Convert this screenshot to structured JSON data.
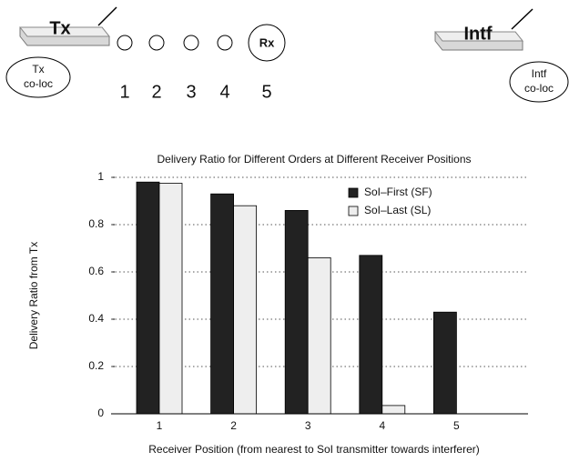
{
  "diagram": {
    "tx": "Tx",
    "tx_coloc": [
      "Tx",
      "co-loc"
    ],
    "rx": "Rx",
    "positions": [
      "1",
      "2",
      "3",
      "4",
      "5"
    ],
    "intf": "Intf",
    "intf_coloc": [
      "Intf",
      "co-loc"
    ]
  },
  "chart_data": {
    "type": "bar",
    "title": "Delivery Ratio for Different Orders at Different Receiver Positions",
    "x_label": "Receiver Position (from nearest to SoI transmitter towards interferer)",
    "y_label": "Delivery Ratio from Tx",
    "categories": [
      "1",
      "2",
      "3",
      "4",
      "5"
    ],
    "series": [
      {
        "name": "SoI–First (SF)",
        "color": "#222222",
        "values": [
          0.98,
          0.93,
          0.86,
          0.67,
          0.43
        ]
      },
      {
        "name": "SoI–Last (SL)",
        "color": "#eeeeee",
        "values": [
          0.975,
          0.88,
          0.66,
          0.035,
          0
        ]
      }
    ],
    "ylim": [
      0,
      1
    ],
    "yticks": [
      0,
      0.2,
      0.4,
      0.6,
      0.8,
      1
    ],
    "grid": true,
    "legend": "upper right"
  }
}
